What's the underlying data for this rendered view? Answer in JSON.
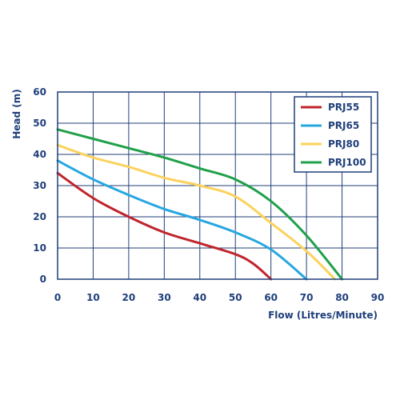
{
  "chart_data": {
    "type": "line",
    "xlabel": "Flow (Litres/Minute)",
    "ylabel": "Head (m)",
    "xlim": [
      0,
      90
    ],
    "ylim": [
      0,
      60
    ],
    "x_ticks": [
      0,
      10,
      20,
      30,
      40,
      50,
      60,
      70,
      80,
      90
    ],
    "y_ticks": [
      0,
      10,
      20,
      30,
      40,
      50,
      60
    ],
    "grid": true,
    "legend_position": "top-right",
    "series": [
      {
        "name": "PRJ55",
        "color": "#c0242c",
        "points": [
          [
            0,
            34
          ],
          [
            10,
            26
          ],
          [
            20,
            20
          ],
          [
            30,
            15
          ],
          [
            40,
            11.5
          ],
          [
            50,
            8
          ],
          [
            55,
            5
          ],
          [
            60,
            0
          ]
        ]
      },
      {
        "name": "PRJ65",
        "color": "#27a7e0",
        "points": [
          [
            0,
            38
          ],
          [
            10,
            32
          ],
          [
            20,
            27
          ],
          [
            30,
            22.5
          ],
          [
            40,
            19
          ],
          [
            50,
            15
          ],
          [
            60,
            9.5
          ],
          [
            70,
            0
          ]
        ]
      },
      {
        "name": "PRJ80",
        "color": "#fcd25c",
        "points": [
          [
            0,
            43
          ],
          [
            10,
            39
          ],
          [
            20,
            36
          ],
          [
            30,
            32.5
          ],
          [
            40,
            30
          ],
          [
            50,
            26.5
          ],
          [
            60,
            18
          ],
          [
            70,
            9
          ],
          [
            78,
            0
          ]
        ]
      },
      {
        "name": "PRJ100",
        "color": "#20a04a",
        "points": [
          [
            0,
            48
          ],
          [
            10,
            45
          ],
          [
            20,
            42
          ],
          [
            30,
            39
          ],
          [
            40,
            35.5
          ],
          [
            50,
            32
          ],
          [
            60,
            25
          ],
          [
            70,
            14
          ],
          [
            80,
            0
          ]
        ]
      }
    ]
  },
  "style": {
    "axis_color": "#1f3f7a",
    "grid_color": "#1f3f7a",
    "background": "#ffffff"
  }
}
